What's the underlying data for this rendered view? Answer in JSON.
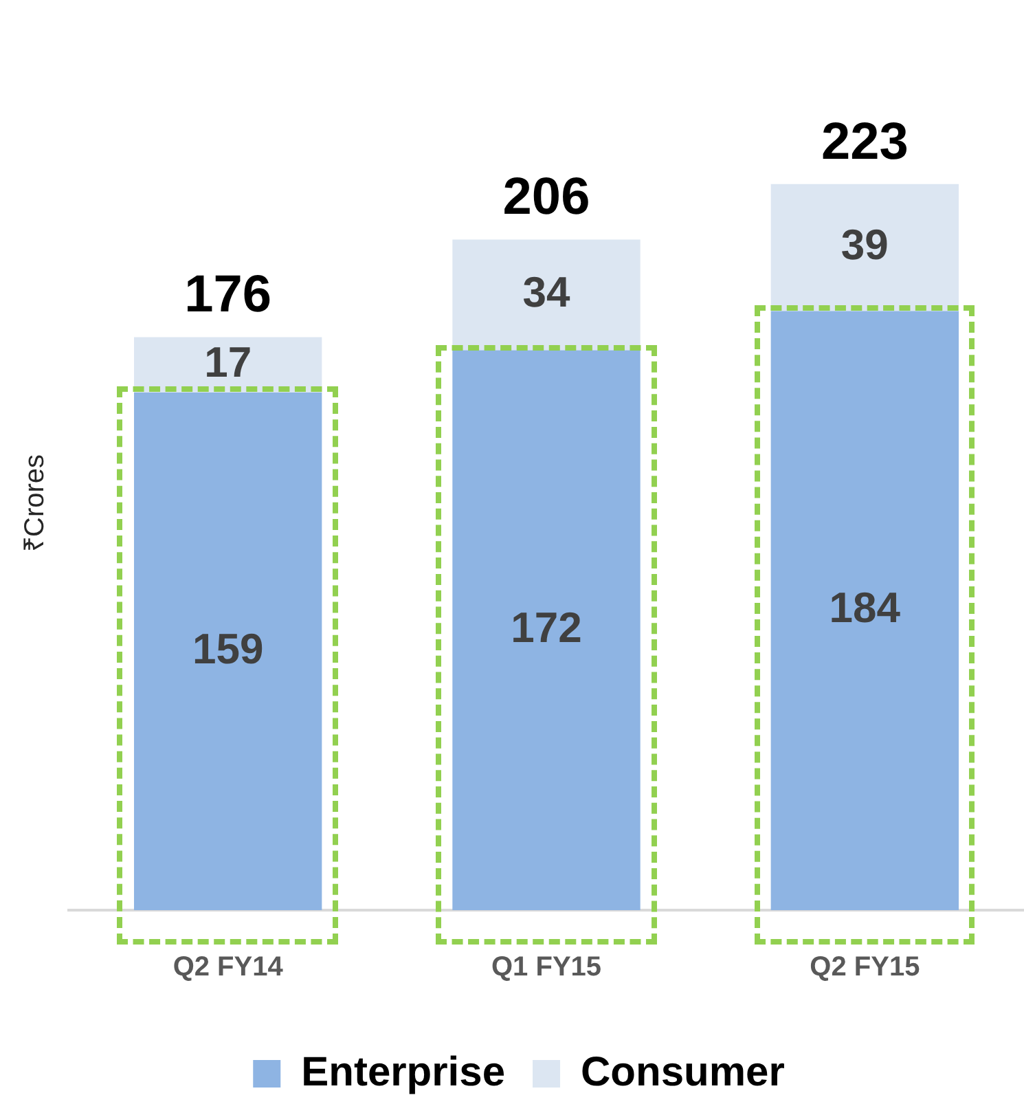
{
  "chart_data": {
    "type": "bar",
    "stacked": true,
    "ylabel": "₹Crores",
    "categories": [
      "Q2 FY14",
      "Q1 FY15",
      "Q2 FY15"
    ],
    "series": [
      {
        "name": "Enterprise",
        "color": "#8eb4e3",
        "values": [
          159,
          172,
          184
        ]
      },
      {
        "name": "Consumer",
        "color": "#dce6f2",
        "values": [
          17,
          34,
          39
        ]
      }
    ],
    "data_labels": true,
    "totals": [
      "176",
      "206",
      "223"
    ],
    "legend": "bottom",
    "grid": false
  }
}
